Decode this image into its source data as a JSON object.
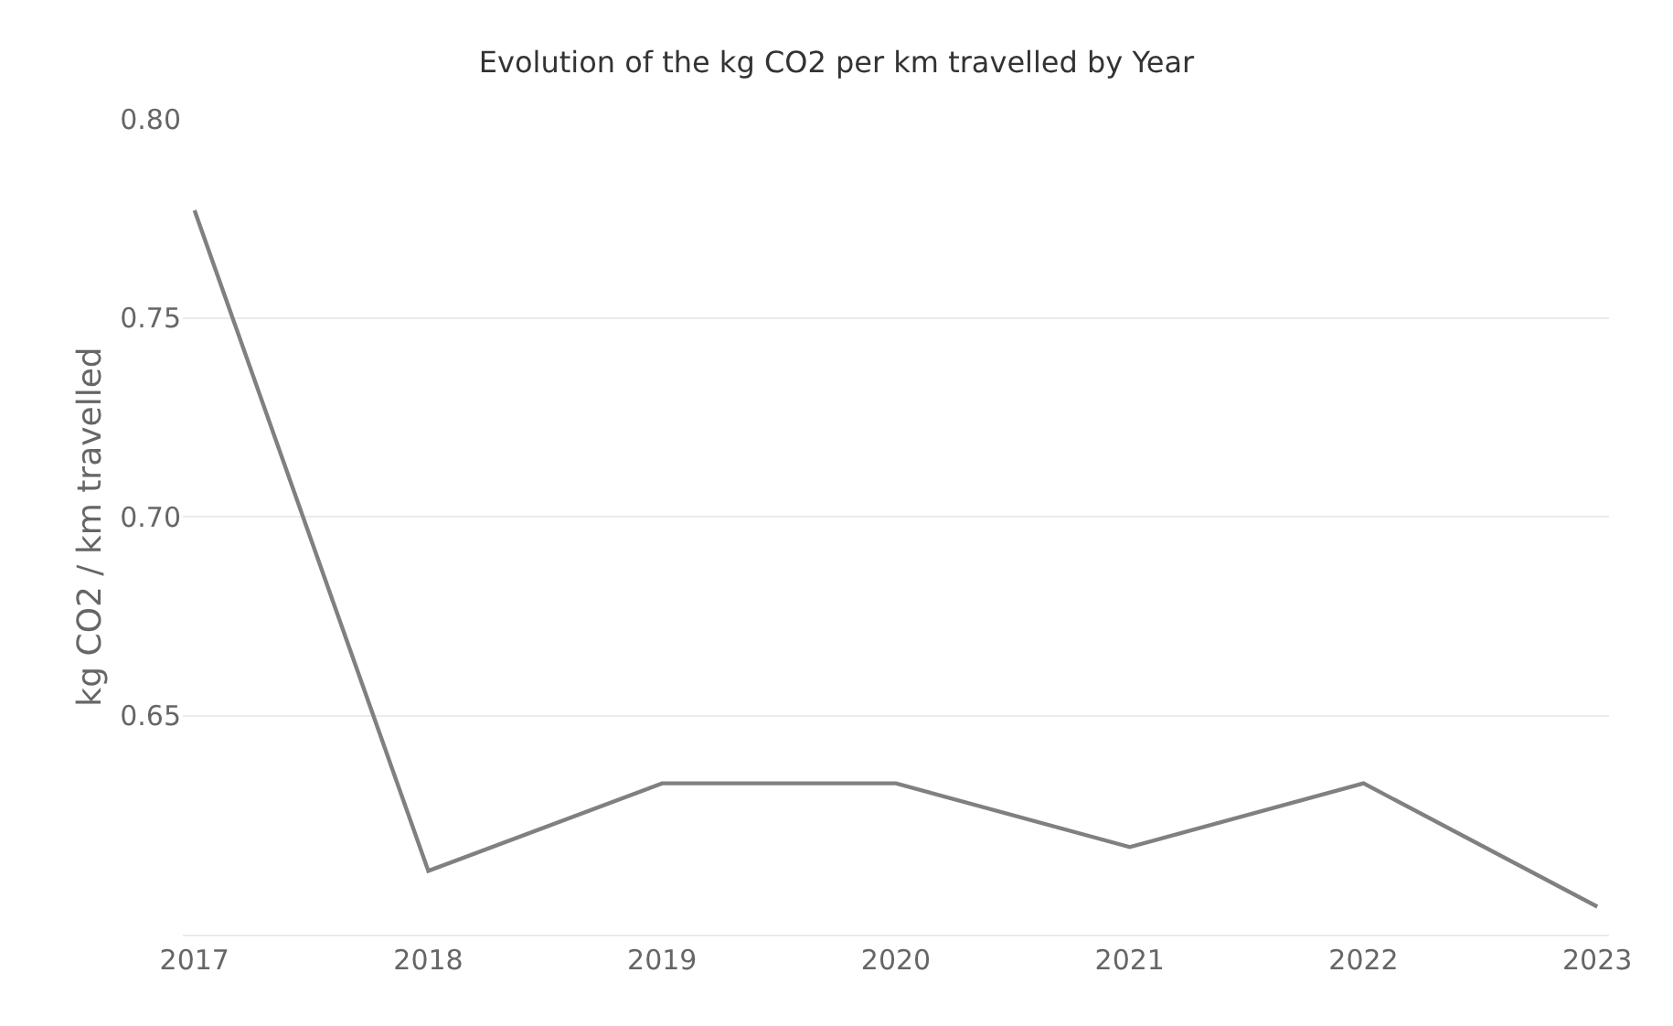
{
  "chart_data": {
    "type": "line",
    "title": "Evolution of the kg CO2 per km travelled by Year",
    "ylabel": "kg CO2 / km travelled",
    "categories": [
      "2017",
      "2018",
      "2019",
      "2020",
      "2021",
      "2022",
      "2023"
    ],
    "series": [
      {
        "color": "#808080",
        "values": [
          0.777,
          0.611,
          0.633,
          0.633,
          0.617,
          0.633,
          0.602
        ]
      }
    ],
    "yticks": [
      {
        "value": 0.65,
        "label": "0.65"
      },
      {
        "value": 0.7,
        "label": "0.70"
      },
      {
        "value": 0.75,
        "label": "0.75"
      },
      {
        "value": 0.8,
        "label": "0.80"
      }
    ],
    "ylim": [
      0.595,
      0.8
    ],
    "grid": "y",
    "marker": "none",
    "line_style": "solid"
  }
}
